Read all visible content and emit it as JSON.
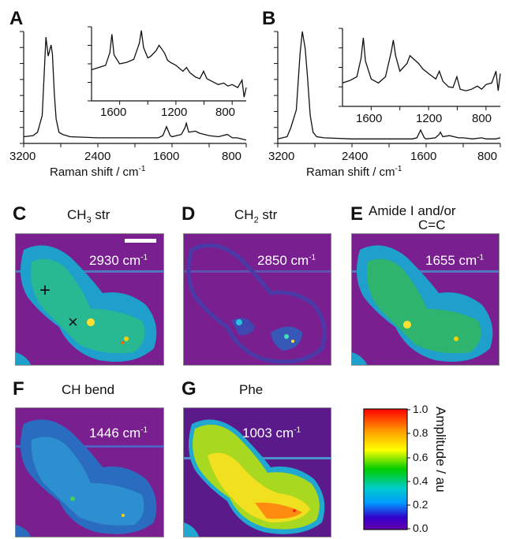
{
  "figure": {
    "panels_top": [
      {
        "label": "A",
        "xlabel": "Raman shift / cm",
        "xlabel_sup": "-1",
        "ticks": [
          "3200",
          "2400",
          "1600",
          "800"
        ],
        "inset_ticks": [
          "1600",
          "1200",
          "800"
        ]
      },
      {
        "label": "B",
        "xlabel": "Raman shift / cm",
        "xlabel_sup": "-1",
        "ticks": [
          "3200",
          "2400",
          "1600",
          "800"
        ],
        "inset_ticks": [
          "1600",
          "1200",
          "800"
        ]
      }
    ],
    "maps": [
      {
        "label": "C",
        "title_main": "CH",
        "title_sub": "3",
        "title_tail": " str",
        "wavenumber": "2930 cm",
        "sup": "-1",
        "markers": [
          "+",
          "×"
        ]
      },
      {
        "label": "D",
        "title_main": "CH",
        "title_sub": "2",
        "title_tail": " str",
        "wavenumber": "2850 cm",
        "sup": "-1"
      },
      {
        "label": "E",
        "title_line1": "Amide I and/or",
        "title_line2": "C=C",
        "wavenumber": "1655 cm",
        "sup": "-1"
      },
      {
        "label": "F",
        "title": "CH bend",
        "wavenumber": "1446 cm",
        "sup": "-1"
      },
      {
        "label": "G",
        "title": "Phe",
        "wavenumber": "1003 cm",
        "sup": "-1"
      }
    ],
    "colorbar": {
      "label": "Amplitude / au",
      "ticks": [
        "1.0",
        "0.8",
        "0.6",
        "0.4",
        "0.2",
        "0.0"
      ],
      "colors": [
        "#ff0000",
        "#ff9900",
        "#ffff00",
        "#00cc00",
        "#00cccc",
        "#0099ff",
        "#3300cc",
        "#6600aa"
      ]
    }
  },
  "chart_data": [
    {
      "type": "line",
      "title": "",
      "xlabel": "Raman shift / cm-1",
      "ylabel": "",
      "xlim": [
        3200,
        800
      ],
      "x_reversed": true,
      "x": [
        3200,
        3100,
        3050,
        3000,
        2960,
        2935,
        2905,
        2890,
        2870,
        2850,
        2820,
        2780,
        2700,
        2400,
        2000,
        1750,
        1700,
        1660,
        1620,
        1600,
        1500,
        1460,
        1446,
        1420,
        1350,
        1300,
        1250,
        1200,
        1100,
        1003,
        950,
        900,
        850,
        800
      ],
      "y": [
        0.06,
        0.07,
        0.1,
        0.25,
        0.95,
        0.78,
        0.88,
        0.8,
        0.45,
        0.22,
        0.1,
        0.08,
        0.06,
        0.05,
        0.05,
        0.05,
        0.07,
        0.15,
        0.07,
        0.06,
        0.08,
        0.14,
        0.18,
        0.1,
        0.11,
        0.09,
        0.08,
        0.07,
        0.06,
        0.08,
        0.05,
        0.05,
        0.04,
        0.03
      ]
    },
    {
      "type": "line",
      "title": "",
      "xlabel": "Raman shift / cm-1",
      "ylabel": "",
      "xlim": [
        3200,
        800
      ],
      "x_reversed": true,
      "x": [
        3200,
        3100,
        3060,
        3000,
        2960,
        2935,
        2905,
        2880,
        2850,
        2820,
        2780,
        2700,
        2400,
        2000,
        1750,
        1700,
        1660,
        1620,
        1600,
        1500,
        1460,
        1446,
        1420,
        1350,
        1300,
        1250,
        1200,
        1100,
        1003,
        950,
        900,
        850,
        800
      ],
      "y": [
        0.04,
        0.06,
        0.14,
        0.3,
        0.8,
        1.0,
        0.85,
        0.6,
        0.25,
        0.1,
        0.06,
        0.05,
        0.04,
        0.04,
        0.04,
        0.05,
        0.12,
        0.05,
        0.04,
        0.05,
        0.08,
        0.1,
        0.06,
        0.07,
        0.06,
        0.05,
        0.05,
        0.04,
        0.05,
        0.04,
        0.04,
        0.04,
        0.05
      ]
    },
    {
      "type": "line",
      "title": "",
      "xlabel": "",
      "ylabel": "",
      "xlim": [
        1800,
        700
      ],
      "x_reversed": true,
      "x": [
        1800,
        1750,
        1700,
        1670,
        1655,
        1640,
        1600,
        1550,
        1500,
        1460,
        1446,
        1430,
        1400,
        1380,
        1340,
        1320,
        1300,
        1280,
        1260,
        1240,
        1200,
        1150,
        1125,
        1100,
        1060,
        1030,
        1003,
        980,
        940,
        900,
        860,
        830,
        800,
        760,
        730,
        715,
        700
      ],
      "y": [
        0.42,
        0.45,
        0.48,
        0.65,
        0.9,
        0.62,
        0.5,
        0.52,
        0.56,
        0.78,
        0.95,
        0.72,
        0.58,
        0.6,
        0.68,
        0.75,
        0.7,
        0.64,
        0.55,
        0.52,
        0.48,
        0.4,
        0.45,
        0.38,
        0.32,
        0.3,
        0.4,
        0.3,
        0.26,
        0.22,
        0.24,
        0.2,
        0.22,
        0.18,
        0.28,
        0.05,
        0.18
      ]
    },
    {
      "type": "line",
      "title": "",
      "xlabel": "",
      "ylabel": "",
      "xlim": [
        1800,
        700
      ],
      "x_reversed": true,
      "x": [
        1800,
        1750,
        1700,
        1670,
        1655,
        1640,
        1600,
        1550,
        1500,
        1460,
        1446,
        1430,
        1400,
        1350,
        1330,
        1300,
        1270,
        1240,
        1200,
        1150,
        1125,
        1100,
        1060,
        1030,
        1003,
        980,
        940,
        900,
        860,
        830,
        800,
        760,
        730,
        715,
        700
      ],
      "y": [
        0.3,
        0.33,
        0.38,
        0.62,
        0.88,
        0.58,
        0.35,
        0.3,
        0.38,
        0.7,
        0.85,
        0.65,
        0.45,
        0.55,
        0.65,
        0.6,
        0.55,
        0.48,
        0.42,
        0.35,
        0.45,
        0.32,
        0.25,
        0.24,
        0.38,
        0.22,
        0.2,
        0.22,
        0.26,
        0.22,
        0.28,
        0.3,
        0.45,
        0.2,
        0.42
      ]
    }
  ]
}
